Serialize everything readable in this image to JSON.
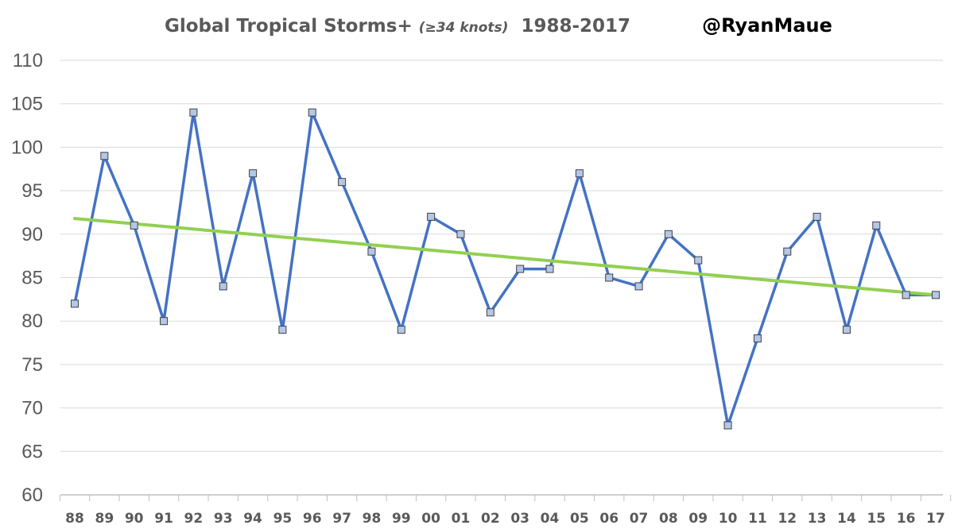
{
  "chart_data": {
    "type": "line",
    "title": {
      "part1": "Global Tropical Storms+ ",
      "part2": "(",
      "part3": "≥34 knots",
      "part4": ")",
      "part5": "  1988-2017"
    },
    "handle": "@RyanMaue",
    "xlabel": "",
    "ylabel": "",
    "ylim": [
      60,
      110
    ],
    "y_ticks": [
      "60",
      "65",
      "70",
      "75",
      "80",
      "85",
      "90",
      "95",
      "100",
      "105",
      "110"
    ],
    "categories": [
      "88",
      "89",
      "90",
      "91",
      "92",
      "93",
      "94",
      "95",
      "96",
      "97",
      "98",
      "99",
      "00",
      "01",
      "02",
      "03",
      "04",
      "05",
      "06",
      "07",
      "08",
      "09",
      "10",
      "11",
      "12",
      "13",
      "14",
      "15",
      "16",
      "17"
    ],
    "series": [
      {
        "name": "Global Tropical Storms",
        "color": "#4472c4",
        "marker_fill": "#b4c7e7",
        "values": [
          82,
          99,
          91,
          80,
          104,
          84,
          97,
          79,
          104,
          96,
          88,
          79,
          92,
          90,
          81,
          86,
          86,
          97,
          85,
          84,
          90,
          87,
          68,
          78,
          88,
          92,
          79,
          91,
          83,
          83
        ]
      },
      {
        "name": "Linear trend",
        "color": "#92d050",
        "trend_start": 91.8,
        "trend_end": 83.0
      }
    ],
    "grid": true,
    "grid_color": "#d9d9d9",
    "axis_color": "#bfbfbf"
  }
}
